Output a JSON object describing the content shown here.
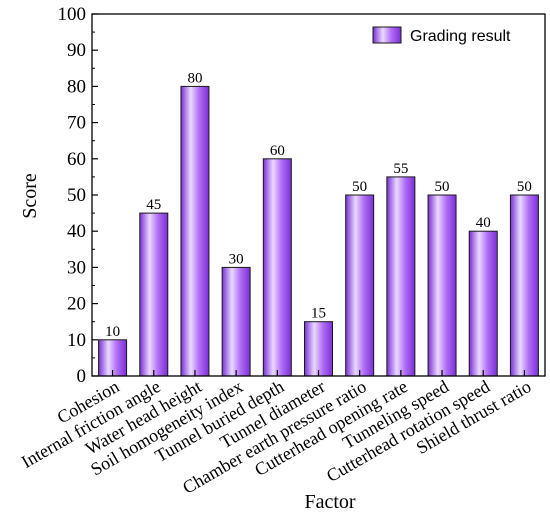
{
  "chart_data": {
    "type": "bar",
    "categories": [
      "Cohesion",
      "Internal friction angle",
      "Water head height",
      "Soil homogeneity index",
      "Tunnel buried depth",
      "Tunnel diameter",
      "Chamber earth pressure ratio",
      "Cutterhead opening rate",
      "Tunneling speed",
      "Cutterhead rotation speed",
      "Shield thrust ratio"
    ],
    "series": [
      {
        "name": "Grading result",
        "values": [
          10,
          45,
          80,
          30,
          60,
          15,
          50,
          55,
          50,
          40,
          50
        ]
      }
    ],
    "xlabel": "Factor",
    "ylabel": "Score",
    "ylim": [
      0,
      100
    ],
    "yticks": [
      "0",
      "10",
      "20",
      "30",
      "40",
      "50",
      "60",
      "70",
      "80",
      "90",
      "100"
    ],
    "legend_position": "top-right",
    "grid": false,
    "colors": {
      "bar_light": "#ead9ff",
      "bar_mid": "#b26ef5",
      "bar_dark": "#7a2fd6",
      "bar_edge": "#1a1a1a"
    }
  }
}
